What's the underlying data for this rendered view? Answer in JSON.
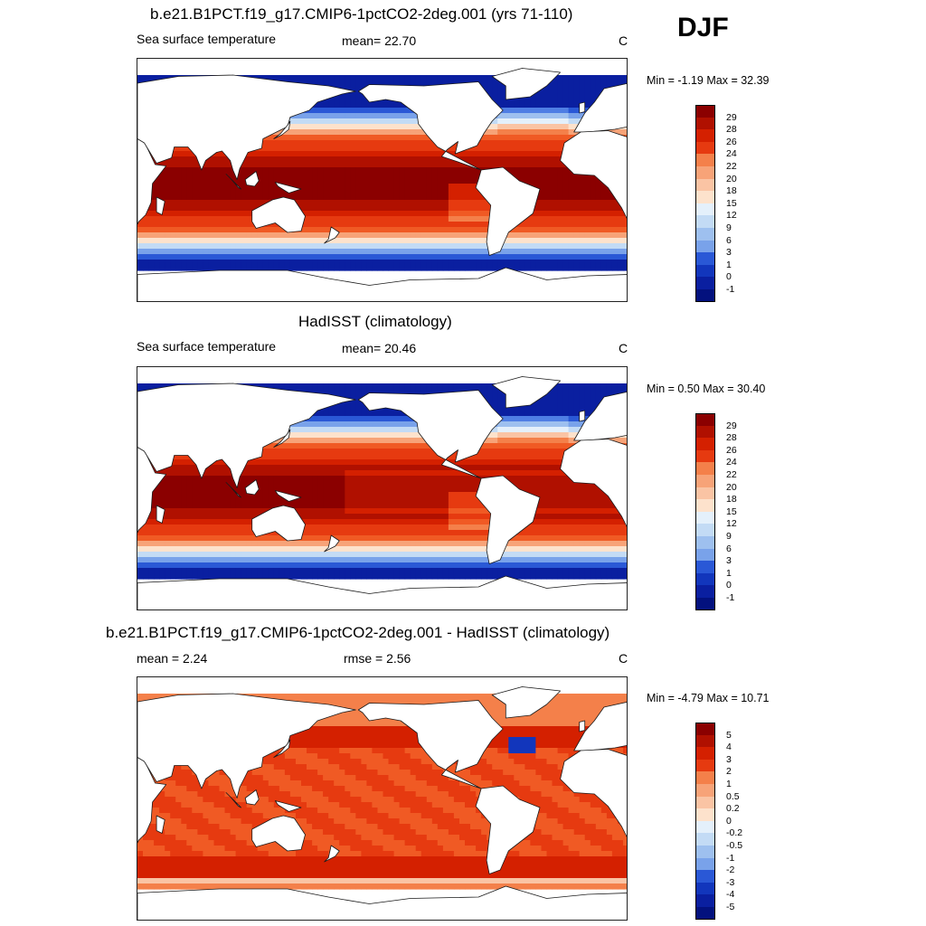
{
  "season": "DJF",
  "colors": {
    "warm": [
      "#8b0000",
      "#b01000",
      "#d42000",
      "#e63a10",
      "#f05a24",
      "#f4804a",
      "#f7a378",
      "#fac4a4",
      "#fde2cc"
    ],
    "cool": [
      "#e4f0fb",
      "#c3dbf5",
      "#9ec0ef",
      "#79a2ea",
      "#4f7ee4",
      "#2a58d6",
      "#1236bc",
      "#0a1fa0",
      "#03117e"
    ],
    "land": "#ffffff",
    "coast": "#1a1a1a"
  },
  "panels": [
    {
      "id": "model",
      "title": "b.e21.B1PCT.f19_g17.CMIP6-1pctCO2-2deg.001 (yrs 71-110)",
      "left_label": "Sea surface temperature",
      "center_label": "mean=  22.70",
      "unit": "C",
      "minmax": "Min =  -1.19 Max =  32.39",
      "colorbar_labels": [
        "29",
        "28",
        "26",
        "24",
        "22",
        "20",
        "18",
        "15",
        "12",
        "9",
        "6",
        "3",
        "1",
        "0",
        "-1"
      ]
    },
    {
      "id": "obs",
      "title": "HadISST (climatology)",
      "left_label": "Sea surface temperature",
      "center_label": "mean=  20.46",
      "unit": "C",
      "minmax": "Min =   0.50 Max =  30.40",
      "colorbar_labels": [
        "29",
        "28",
        "26",
        "24",
        "22",
        "20",
        "18",
        "15",
        "12",
        "9",
        "6",
        "3",
        "1",
        "0",
        "-1"
      ]
    },
    {
      "id": "diff",
      "title": "b.e21.B1PCT.f19_g17.CMIP6-1pctCO2-2deg.001 - HadISST (climatology)",
      "left_label": "mean =   2.24",
      "center_label": "rmse =   2.56",
      "unit": "C",
      "minmax": "Min =  -4.79 Max =  10.71",
      "colorbar_labels": [
        "5",
        "4",
        "3",
        "2",
        "1",
        "0.5",
        "0.2",
        "0",
        "-0.2",
        "-0.5",
        "-1",
        "-2",
        "-3",
        "-4",
        "-5"
      ]
    }
  ]
}
